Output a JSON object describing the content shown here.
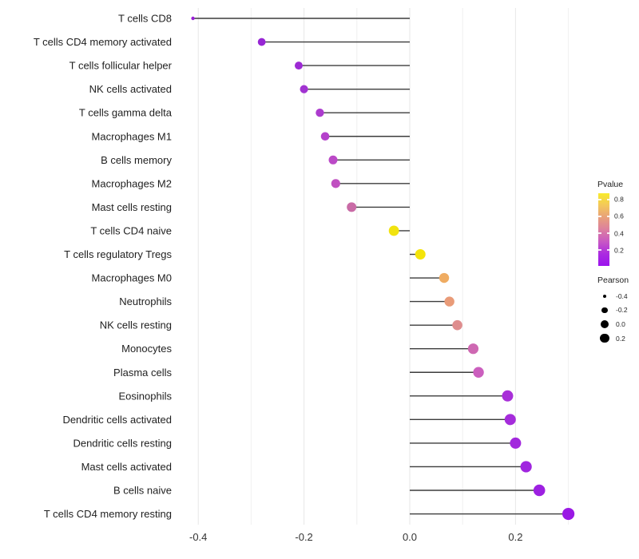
{
  "chart_data": {
    "type": "scatter",
    "variant": "lollipop",
    "title": "",
    "xlabel": "",
    "ylabel": "",
    "xlim": [
      -0.45,
      0.32
    ],
    "baseline": 0,
    "grid": "vertical-only",
    "legend_position": "right",
    "x_gridlines": [
      -0.4,
      -0.3,
      -0.2,
      -0.1,
      0.0,
      0.1,
      0.2,
      0.3
    ],
    "x_ticks": [
      {
        "value": -0.4,
        "label": "-0.4"
      },
      {
        "value": -0.2,
        "label": "-0.2"
      },
      {
        "value": 0.0,
        "label": "0.0"
      },
      {
        "value": 0.2,
        "label": "0.2"
      }
    ],
    "rows": [
      {
        "label": "T cells CD8",
        "pearson": -0.41,
        "color": "#981ED6",
        "radius": 2.2
      },
      {
        "label": "T cells CD4 memory activated",
        "pearson": -0.28,
        "color": "#9726D4",
        "radius": 4.9
      },
      {
        "label": "T cells follicular helper",
        "pearson": -0.21,
        "color": "#9D2AD4",
        "radius": 5.0
      },
      {
        "label": "NK cells activated",
        "pearson": -0.2,
        "color": "#A133D1",
        "radius": 5.1
      },
      {
        "label": "T cells gamma delta",
        "pearson": -0.17,
        "color": "#AC3BCE",
        "radius": 5.2
      },
      {
        "label": "Macrophages M1",
        "pearson": -0.16,
        "color": "#B441CB",
        "radius": 5.3
      },
      {
        "label": "B cells memory",
        "pearson": -0.145,
        "color": "#BB49C7",
        "radius": 5.5
      },
      {
        "label": "Macrophages M2",
        "pearson": -0.14,
        "color": "#C050C1",
        "radius": 5.6
      },
      {
        "label": "Mast cells resting",
        "pearson": -0.11,
        "color": "#C96BA6",
        "radius": 6.0
      },
      {
        "label": "T cells CD4 naive",
        "pearson": -0.03,
        "color": "#F1E30F",
        "radius": 6.4
      },
      {
        "label": "T cells regulatory  Tregs",
        "pearson": 0.02,
        "color": "#F4E40A",
        "radius": 6.5
      },
      {
        "label": "Macrophages M0",
        "pearson": 0.065,
        "color": "#EFAC62",
        "radius": 6.2
      },
      {
        "label": "Neutrophils",
        "pearson": 0.075,
        "color": "#E99B78",
        "radius": 6.2
      },
      {
        "label": "NK cells resting",
        "pearson": 0.09,
        "color": "#DE8D8E",
        "radius": 6.3
      },
      {
        "label": "Monocytes",
        "pearson": 0.12,
        "color": "#CE68B2",
        "radius": 6.6
      },
      {
        "label": "Plasma cells",
        "pearson": 0.13,
        "color": "#CB5FBE",
        "radius": 6.7
      },
      {
        "label": "Eosinophils",
        "pearson": 0.185,
        "color": "#A82FD8",
        "radius": 7.0
      },
      {
        "label": "Dendritic cells activated",
        "pearson": 0.19,
        "color": "#A52CDB",
        "radius": 7.0
      },
      {
        "label": "Dendritic cells resting",
        "pearson": 0.2,
        "color": "#A228DD",
        "radius": 7.0
      },
      {
        "label": "Mast cells activated",
        "pearson": 0.22,
        "color": "#A025DF",
        "radius": 7.1
      },
      {
        "label": "B cells naive",
        "pearson": 0.245,
        "color": "#9D20E1",
        "radius": 7.3
      },
      {
        "label": "T cells CD4 memory resting",
        "pearson": 0.3,
        "color": "#9A19E4",
        "radius": 7.6
      }
    ],
    "legends": {
      "pvalue": {
        "title": "Pvalue",
        "ticks": [
          "0.8",
          "0.6",
          "0.4",
          "0.2"
        ],
        "tick_offsets_pct": [
          9,
          32,
          55,
          78
        ],
        "gradient_top_to_bottom": [
          "#F8EB2C",
          "#F3C75B",
          "#E8A07B",
          "#DC7F9F",
          "#C858C4",
          "#AB2BE0",
          "#9C13EE"
        ]
      },
      "pearson": {
        "title": "Pearson",
        "dot_color": "#000000",
        "items": [
          {
            "label": "-0.4",
            "diameter": 4
          },
          {
            "label": "-0.2",
            "diameter": 7.5
          },
          {
            "label": "0.0",
            "diameter": 10
          },
          {
            "label": "0.2",
            "diameter": 11.5
          }
        ]
      }
    },
    "colors": {
      "segment": "#3c3c3c",
      "gridline_major": "#e7e7e7",
      "gridline_minor": "#f0f0f0",
      "axis_text": "#333333",
      "category_text": "#1f1f1f",
      "background": "#ffffff"
    }
  }
}
